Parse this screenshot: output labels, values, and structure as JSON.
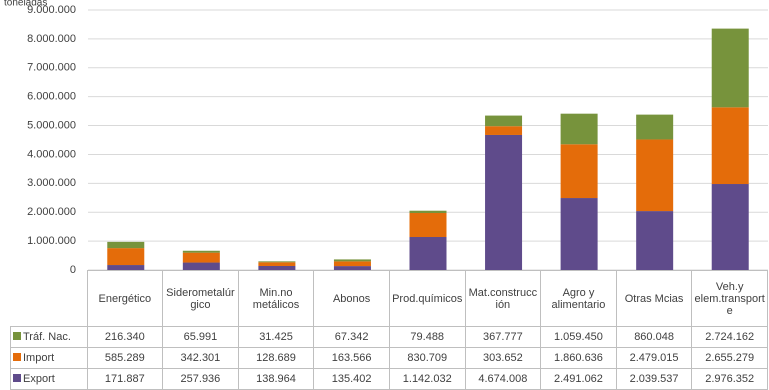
{
  "chart_data": {
    "type": "stacked-bar",
    "y_label": "toneladas",
    "categories": [
      "Energético",
      "Siderometalúrgico",
      "Min.no metálicos",
      "Abonos",
      "Prod.químicos",
      "Mat.construcción",
      "Agro y alimentario",
      "Otras Mcias",
      "Veh.y elem.transporte"
    ],
    "series": [
      {
        "name": "Export",
        "color": "#5f4b8b",
        "values": [
          171887,
          257936,
          138964,
          135402,
          1142032,
          4674008,
          2491062,
          2039537,
          2976352
        ],
        "value_labels": [
          "171.887",
          "257.936",
          "138.964",
          "135.402",
          "1.142.032",
          "4.674.008",
          "2.491.062",
          "2.039.537",
          "2.976.352"
        ]
      },
      {
        "name": "Import",
        "color": "#e46c0a",
        "values": [
          585289,
          342301,
          128689,
          163566,
          830709,
          303652,
          1860636,
          2479015,
          2655279
        ],
        "value_labels": [
          "585.289",
          "342.301",
          "128.689",
          "163.566",
          "830.709",
          "303.652",
          "1.860.636",
          "2.479.015",
          "2.655.279"
        ]
      },
      {
        "name": "Tráf. Nac.",
        "color": "#77933c",
        "values": [
          216340,
          65991,
          31425,
          67342,
          79488,
          367777,
          1059450,
          860048,
          2724162
        ],
        "value_labels": [
          "216.340",
          "65.991",
          "31.425",
          "67.342",
          "79.488",
          "367.777",
          "1.059.450",
          "860.048",
          "2.724.162"
        ]
      }
    ],
    "ylim": [
      0,
      9000000
    ],
    "yticks": [
      0,
      {
        "value": 1000000,
        "label": "1.000.000"
      },
      {
        "value": 2000000,
        "label": "2.000.000"
      },
      {
        "value": 3000000,
        "label": "3.000.000"
      },
      {
        "value": 4000000,
        "label": "4.000.000"
      },
      {
        "value": 5000000,
        "label": "5.000.000"
      },
      {
        "value": 6000000,
        "label": "6.000.000"
      },
      {
        "value": 7000000,
        "label": "7.000.000"
      },
      {
        "value": 8000000,
        "label": "8.000.000"
      },
      {
        "value": 9000000,
        "label": "9.000.000"
      }
    ],
    "grid": true
  }
}
